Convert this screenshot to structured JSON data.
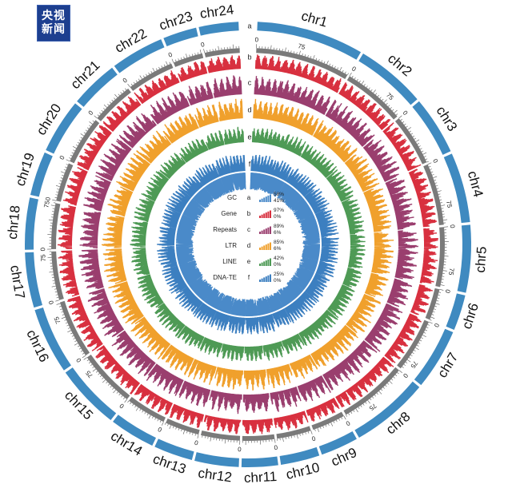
{
  "watermark": {
    "line1": "央视",
    "line2": "新闻"
  },
  "chart_data": {
    "type": "circos",
    "title": "",
    "chromosomes": [
      "chr1",
      "chr2",
      "chr3",
      "chr4",
      "chr5",
      "chr6",
      "chr7",
      "chr8",
      "chr9",
      "chr10",
      "chr11",
      "chr12",
      "chr13",
      "chr14",
      "chr15",
      "chr16",
      "chr17",
      "chr18",
      "chr19",
      "chr20",
      "chr21",
      "chr22",
      "chr23",
      "chr24"
    ],
    "chromosome_sizes": [
      165,
      108,
      90,
      108,
      104,
      55,
      94,
      120,
      58,
      60,
      56,
      68,
      60,
      70,
      100,
      102,
      85,
      80,
      68,
      84,
      74,
      82,
      52,
      61
    ],
    "scale_ticks": [
      {
        "chr": "chr1",
        "labels": [
          "0",
          "75"
        ]
      },
      {
        "chr": "chr2",
        "labels": [
          "0",
          "75"
        ]
      },
      {
        "chr": "chr3",
        "labels": [
          "0"
        ]
      },
      {
        "chr": "chr4",
        "labels": [
          "0",
          "75"
        ]
      },
      {
        "chr": "chr5",
        "labels": [
          "0",
          "75"
        ]
      },
      {
        "chr": "chr6",
        "labels": [
          "0"
        ]
      },
      {
        "chr": "chr7",
        "labels": [
          "0",
          "75"
        ]
      },
      {
        "chr": "chr8",
        "labels": [
          "0",
          "75"
        ]
      },
      {
        "chr": "chr9",
        "labels": [
          "0"
        ]
      },
      {
        "chr": "chr10",
        "labels": [
          "0"
        ]
      },
      {
        "chr": "chr11",
        "labels": [
          "0"
        ]
      },
      {
        "chr": "chr12",
        "labels": [
          "0"
        ]
      },
      {
        "chr": "chr13",
        "labels": [
          "0"
        ]
      },
      {
        "chr": "chr14",
        "labels": [
          "0"
        ]
      },
      {
        "chr": "chr15",
        "labels": [
          "0",
          "75"
        ]
      },
      {
        "chr": "chr16",
        "labels": [
          "0",
          "75"
        ]
      },
      {
        "chr": "chr17",
        "labels": [
          "0",
          "75"
        ]
      },
      {
        "chr": "chr18",
        "labels": [
          "0",
          "75"
        ]
      },
      {
        "chr": "chr19",
        "labels": [
          "0"
        ]
      },
      {
        "chr": "chr20",
        "labels": [
          "0"
        ]
      },
      {
        "chr": "chr21",
        "labels": [
          "0"
        ]
      },
      {
        "chr": "chr22",
        "labels": [
          "0"
        ]
      },
      {
        "chr": "chr23",
        "labels": [
          "0"
        ]
      },
      {
        "chr": "chr24",
        "labels": [
          "0"
        ]
      }
    ],
    "series": [
      {
        "track": "a",
        "name": "GC",
        "max": "58%",
        "min": "41%",
        "color": "#4a8ac9",
        "rel_amplitude": 0.45
      },
      {
        "track": "b",
        "name": "Gene",
        "max": "97%",
        "min": "0%",
        "color": "#d8303f",
        "rel_amplitude": 0.9
      },
      {
        "track": "c",
        "name": "Repeats",
        "max": "89%",
        "min": "6%",
        "color": "#9a3e6e",
        "rel_amplitude": 0.7
      },
      {
        "track": "d",
        "name": "LTR",
        "max": "85%",
        "min": "6%",
        "color": "#f0a02c",
        "rel_amplitude": 0.75
      },
      {
        "track": "e",
        "name": "LINE",
        "max": "42%",
        "min": "0%",
        "color": "#4e9a55",
        "rel_amplitude": 0.6
      },
      {
        "track": "f",
        "name": "DNA-TE",
        "max": "25%",
        "min": "0%",
        "color": "#3c7fc0",
        "rel_amplitude": 0.55
      }
    ],
    "track_letters": [
      "a",
      "b",
      "c",
      "d",
      "e",
      "f"
    ],
    "legend_position": "center",
    "ideogram_color": "#3f8ac0",
    "scale_ring_color": "#7a7a7a"
  }
}
